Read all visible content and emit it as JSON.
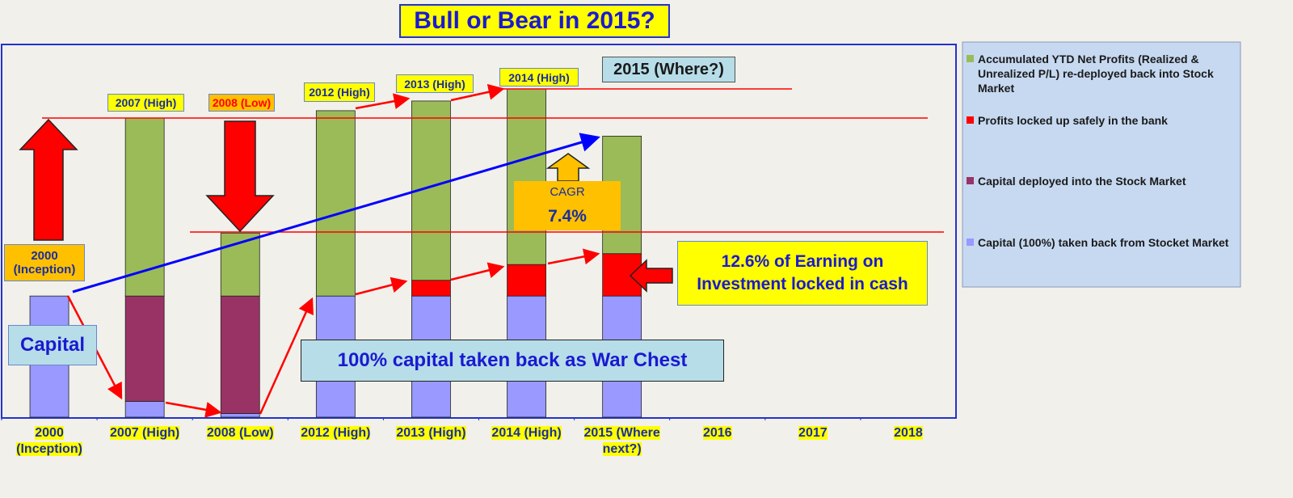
{
  "chart_data": {
    "type": "stacked_bar",
    "title": "Bull or Bear in 2015?",
    "categories": [
      "2000 (Inception)",
      "2007 (High)",
      "2008 (Low)",
      "2012 (High)",
      "2013 (High)",
      "2014 (High)",
      "2015 (Where next?)",
      "2016",
      "2017",
      "2018"
    ],
    "series": [
      {
        "name": "Capital (100%) taken back from Stocket Market",
        "color": "#9999ff",
        "values": [
          100,
          13,
          3,
          100,
          100,
          100,
          100,
          null,
          null,
          null
        ]
      },
      {
        "name": "Capital deployed into the Stock Market",
        "color": "#993366",
        "values": [
          0,
          87,
          97,
          0,
          0,
          0,
          0,
          null,
          null,
          null
        ]
      },
      {
        "name": "Profits locked up safely in the bank",
        "color": "#ff0000",
        "values": [
          0,
          0,
          0,
          0,
          13,
          26,
          35,
          null,
          null,
          null
        ]
      },
      {
        "name": "Accumulated YTD Net Profits (Realized & Unrealized P/L) re-deployed back into Stock Market",
        "color": "#9bbb59",
        "values": [
          0,
          147,
          52,
          153,
          148,
          145,
          97,
          null,
          null,
          null
        ]
      }
    ],
    "ylim": [
      0,
      307
    ],
    "annotations": [
      "2000 (Inception)",
      "2007 (High)",
      "2008 (Low)",
      "2012 (High)",
      "2013 (High)",
      "2014 (High)",
      "2015 (Where?)",
      "CAGR",
      "7.4%",
      "12.6% of Earning on Investment locked in cash",
      "Capital",
      "100% capital taken back as War Chest"
    ]
  }
}
